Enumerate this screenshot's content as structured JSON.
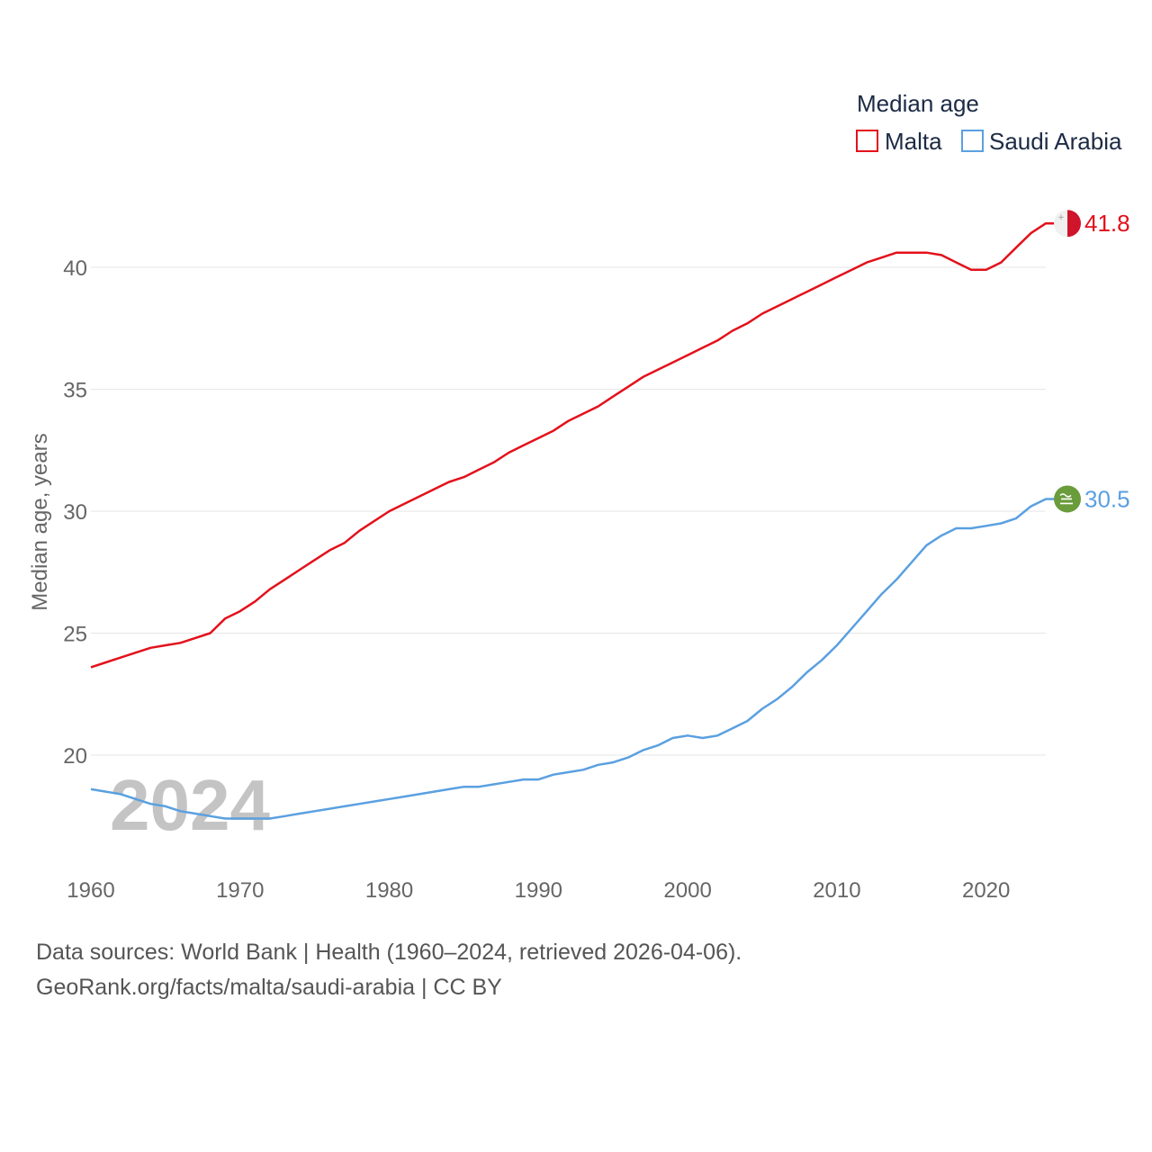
{
  "chart_data": {
    "type": "line",
    "title": "Median age",
    "xlabel": "",
    "ylabel": "Median age, years",
    "year_watermark": "2024",
    "xlim": [
      1960,
      2024
    ],
    "ylim": [
      16,
      42.5
    ],
    "x_ticks": [
      1960,
      1970,
      1980,
      1990,
      2000,
      2010,
      2020
    ],
    "y_ticks": [
      20,
      25,
      30,
      35,
      40
    ],
    "grid": true,
    "legend_position": "top-right",
    "x": [
      1960,
      1961,
      1962,
      1963,
      1964,
      1965,
      1966,
      1967,
      1968,
      1969,
      1970,
      1971,
      1972,
      1973,
      1974,
      1975,
      1976,
      1977,
      1978,
      1979,
      1980,
      1981,
      1982,
      1983,
      1984,
      1985,
      1986,
      1987,
      1988,
      1989,
      1990,
      1991,
      1992,
      1993,
      1994,
      1995,
      1996,
      1997,
      1998,
      1999,
      2000,
      2001,
      2002,
      2003,
      2004,
      2005,
      2006,
      2007,
      2008,
      2009,
      2010,
      2011,
      2012,
      2013,
      2014,
      2015,
      2016,
      2017,
      2018,
      2019,
      2020,
      2021,
      2022,
      2023,
      2024
    ],
    "series": [
      {
        "name": "Malta",
        "color": "#e3111b",
        "end_label": "41.8",
        "flag": "malta-flag",
        "values": [
          23.6,
          23.8,
          24.0,
          24.2,
          24.4,
          24.5,
          24.6,
          24.8,
          25.0,
          25.6,
          25.9,
          26.3,
          26.8,
          27.2,
          27.6,
          28.0,
          28.4,
          28.7,
          29.2,
          29.6,
          30.0,
          30.3,
          30.6,
          30.9,
          31.2,
          31.4,
          31.7,
          32.0,
          32.4,
          32.7,
          33.0,
          33.3,
          33.7,
          34.0,
          34.3,
          34.7,
          35.1,
          35.5,
          35.8,
          36.1,
          36.4,
          36.7,
          37.0,
          37.4,
          37.7,
          38.1,
          38.4,
          38.7,
          39.0,
          39.3,
          39.6,
          39.9,
          40.2,
          40.4,
          40.6,
          40.6,
          40.6,
          40.5,
          40.2,
          39.9,
          39.9,
          40.2,
          40.8,
          41.4,
          41.8
        ]
      },
      {
        "name": "Saudi Arabia",
        "color": "#5aa0e0",
        "end_label": "30.5",
        "flag": "saudi-arabia-flag",
        "values": [
          18.6,
          18.5,
          18.4,
          18.2,
          18.0,
          17.9,
          17.7,
          17.6,
          17.5,
          17.4,
          17.4,
          17.4,
          17.4,
          17.5,
          17.6,
          17.7,
          17.8,
          17.9,
          18.0,
          18.1,
          18.2,
          18.3,
          18.4,
          18.5,
          18.6,
          18.7,
          18.7,
          18.8,
          18.9,
          19.0,
          19.0,
          19.2,
          19.3,
          19.4,
          19.6,
          19.7,
          19.9,
          20.2,
          20.4,
          20.7,
          20.8,
          20.7,
          20.8,
          21.1,
          21.4,
          21.9,
          22.3,
          22.8,
          23.4,
          23.9,
          24.5,
          25.2,
          25.9,
          26.6,
          27.2,
          27.9,
          28.6,
          29.0,
          29.3,
          29.3,
          29.4,
          29.5,
          29.7,
          30.2,
          30.5
        ]
      }
    ],
    "source_line_1": "Data sources: World Bank | Health (1960–2024, retrieved 2026-04-06).",
    "source_line_2": "GeoRank.org/facts/malta/saudi-arabia | CC BY"
  }
}
